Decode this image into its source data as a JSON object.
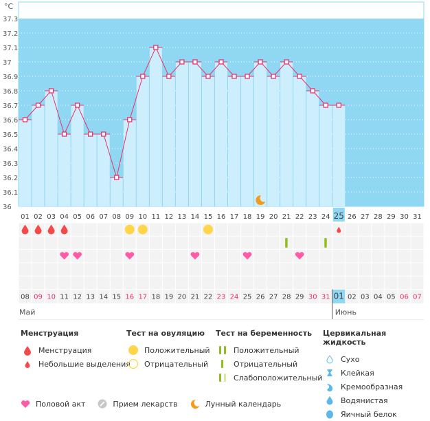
{
  "chart_data": {
    "type": "bar",
    "title": "",
    "ylabel": "°C",
    "ylim": [
      36.0,
      37.3
    ],
    "yticks": [
      "36",
      "36.1",
      "36.2",
      "36.3",
      "36.4",
      "36.5",
      "36.6",
      "36.7",
      "36.8",
      "36.9",
      "37",
      "37.1",
      "37.2",
      "37.3"
    ],
    "cycle_days": [
      "01",
      "02",
      "03",
      "04",
      "05",
      "06",
      "07",
      "08",
      "09",
      "10",
      "11",
      "12",
      "13",
      "14",
      "15",
      "16",
      "17",
      "18",
      "19",
      "20",
      "21",
      "22",
      "23",
      "24",
      "25",
      "26",
      "27",
      "28",
      "29",
      "30",
      "31"
    ],
    "current_cycle_day": "25",
    "temperatures": [
      36.6,
      36.7,
      36.8,
      36.5,
      36.7,
      36.5,
      36.5,
      36.2,
      36.6,
      36.9,
      37.1,
      36.9,
      37.0,
      37.0,
      36.9,
      37.0,
      36.9,
      36.9,
      37.0,
      36.9,
      37.0,
      36.9,
      36.8,
      36.7,
      36.7
    ],
    "moon_day": "19",
    "calendar_dates": [
      "08",
      "09",
      "10",
      "11",
      "12",
      "13",
      "14",
      "15",
      "16",
      "17",
      "18",
      "19",
      "20",
      "21",
      "22",
      "23",
      "24",
      "25",
      "26",
      "27",
      "28",
      "29",
      "30",
      "31",
      "01",
      "02",
      "03",
      "04",
      "05",
      "06",
      "07"
    ],
    "weekend_dates_index": [
      1,
      2,
      8,
      9,
      15,
      16,
      22,
      23,
      29,
      30
    ],
    "today_date": "01",
    "months": {
      "first": "Май",
      "second": "Июнь"
    },
    "events": {
      "menstruation": [
        "01",
        "02",
        "03",
        "04"
      ],
      "spotting": [
        "25"
      ],
      "ovulation_positive": [
        "09",
        "10",
        "15"
      ],
      "pregnancy_negative": [
        "21",
        "24"
      ],
      "intercourse": [
        "04",
        "05",
        "09",
        "14",
        "18",
        "22"
      ]
    }
  },
  "colors": {
    "plot_bg": "#8fd7f2",
    "bar_fill": "#cdeefc",
    "line": "#e8336b",
    "menstruation": "#f24a4a",
    "ovulation": "#ffd54a",
    "pregnancy": "#8fbf1c",
    "heart": "#ff5aa8",
    "moon": "#f39b1a",
    "weekend": "#e8336b"
  },
  "legend": {
    "menstruation": {
      "title": "Менструация",
      "items": [
        "Менструация",
        "Небольшие выделения"
      ]
    },
    "ovulation": {
      "title": "Тест на овуляцию",
      "items": [
        "Положительный",
        "Отрицательный"
      ]
    },
    "pregnancy": {
      "title": "Тест на беременность",
      "items": [
        "Положительный",
        "Отрицательный",
        "Слабоположительный"
      ]
    },
    "cervical": {
      "title": "Цервикальная жидкость",
      "items": [
        "Сухо",
        "Клейкая",
        "Кремообразная",
        "Водянистая",
        "Яичный белок"
      ]
    },
    "bottom": [
      "Половой акт",
      "Прием лекарств",
      "Лунный календарь"
    ]
  }
}
